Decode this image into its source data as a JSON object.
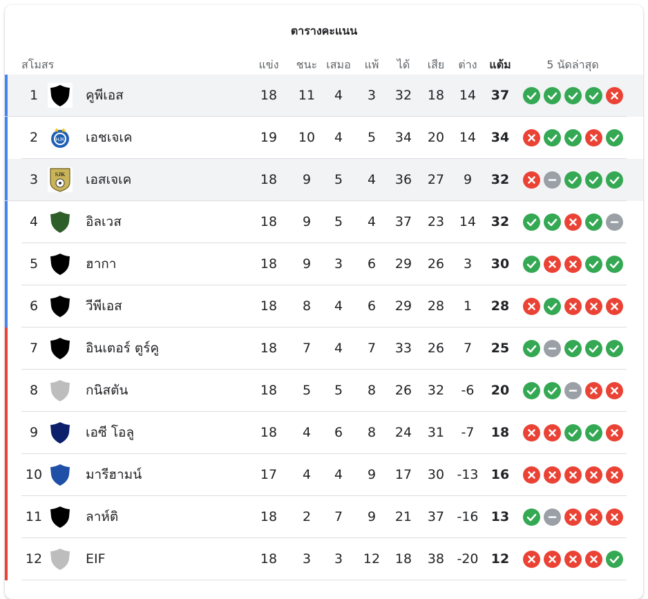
{
  "table": {
    "title": "ตารางคะแนน",
    "headers": {
      "club": "สโมสร",
      "played": "แข่ง",
      "won": "ชนะ",
      "drawn": "เสมอ",
      "lost": "แพ้",
      "gf": "ได้",
      "ga": "เสีย",
      "gd": "ต่าง",
      "points": "แต้ม",
      "last5": "5 นัดล่าสุด"
    },
    "colors": {
      "promotion_bar": "#4285f4",
      "relegation_bar": "#ea4335",
      "win": "#34a853",
      "loss": "#ea4335",
      "draw": "#9aa0a6"
    },
    "rows": [
      {
        "pos": "1",
        "club": "คูพีเอส",
        "crest": "shield-black",
        "played": "18",
        "won": "11",
        "drawn": "4",
        "lost": "3",
        "gf": "32",
        "ga": "18",
        "gd": "14",
        "pts": "37",
        "form": [
          "W",
          "W",
          "W",
          "W",
          "L"
        ],
        "zone": "blue",
        "highlight": true
      },
      {
        "pos": "2",
        "club": "เอชเจเค",
        "crest": "hjk-blue-badge",
        "played": "19",
        "won": "10",
        "drawn": "4",
        "lost": "5",
        "gf": "34",
        "ga": "20",
        "gd": "14",
        "pts": "34",
        "form": [
          "L",
          "W",
          "W",
          "L",
          "W"
        ],
        "zone": "blue",
        "highlight": false
      },
      {
        "pos": "3",
        "club": "เอสเจเค",
        "crest": "sjk-gold-badge",
        "played": "18",
        "won": "9",
        "drawn": "5",
        "lost": "4",
        "gf": "36",
        "ga": "27",
        "gd": "9",
        "pts": "32",
        "form": [
          "L",
          "D",
          "W",
          "W",
          "W"
        ],
        "zone": "blue",
        "highlight": true
      },
      {
        "pos": "4",
        "club": "อิลเวส",
        "crest": "shield-green",
        "played": "18",
        "won": "9",
        "drawn": "5",
        "lost": "4",
        "gf": "37",
        "ga": "23",
        "gd": "14",
        "pts": "32",
        "form": [
          "W",
          "W",
          "L",
          "W",
          "D"
        ],
        "zone": "blue",
        "highlight": false
      },
      {
        "pos": "5",
        "club": "ฮากา",
        "crest": "shield-black",
        "played": "18",
        "won": "9",
        "drawn": "3",
        "lost": "6",
        "gf": "29",
        "ga": "26",
        "gd": "3",
        "pts": "30",
        "form": [
          "W",
          "L",
          "L",
          "W",
          "W"
        ],
        "zone": "blue",
        "highlight": false
      },
      {
        "pos": "6",
        "club": "วีพีเอส",
        "crest": "shield-black",
        "played": "18",
        "won": "8",
        "drawn": "4",
        "lost": "6",
        "gf": "29",
        "ga": "28",
        "gd": "1",
        "pts": "28",
        "form": [
          "L",
          "W",
          "L",
          "L",
          "L"
        ],
        "zone": "blue",
        "highlight": false
      },
      {
        "pos": "7",
        "club": "อินเตอร์ ตูร์คู",
        "crest": "shield-black",
        "played": "18",
        "won": "7",
        "drawn": "4",
        "lost": "7",
        "gf": "33",
        "ga": "26",
        "gd": "7",
        "pts": "25",
        "form": [
          "W",
          "D",
          "W",
          "W",
          "W"
        ],
        "zone": "red",
        "highlight": false
      },
      {
        "pos": "8",
        "club": "กนิสตัน",
        "crest": "shield-grey",
        "played": "18",
        "won": "5",
        "drawn": "5",
        "lost": "8",
        "gf": "26",
        "ga": "32",
        "gd": "-6",
        "pts": "20",
        "form": [
          "W",
          "W",
          "D",
          "L",
          "L"
        ],
        "zone": "red",
        "highlight": false
      },
      {
        "pos": "9",
        "club": "เอซี โอลู",
        "crest": "shield-navy",
        "played": "18",
        "won": "4",
        "drawn": "6",
        "lost": "8",
        "gf": "24",
        "ga": "31",
        "gd": "-7",
        "pts": "18",
        "form": [
          "L",
          "L",
          "W",
          "W",
          "L"
        ],
        "zone": "red",
        "highlight": false
      },
      {
        "pos": "10",
        "club": "มารีฮามน์",
        "crest": "shield-blue",
        "played": "17",
        "won": "4",
        "drawn": "4",
        "lost": "9",
        "gf": "17",
        "ga": "30",
        "gd": "-13",
        "pts": "16",
        "form": [
          "L",
          "L",
          "L",
          "L",
          "L"
        ],
        "zone": "red",
        "highlight": false
      },
      {
        "pos": "11",
        "club": "ลาห์ติ",
        "crest": "shield-black",
        "played": "18",
        "won": "2",
        "drawn": "7",
        "lost": "9",
        "gf": "21",
        "ga": "37",
        "gd": "-16",
        "pts": "13",
        "form": [
          "W",
          "D",
          "L",
          "L",
          "L"
        ],
        "zone": "red",
        "highlight": false
      },
      {
        "pos": "12",
        "club": "EIF",
        "crest": "shield-grey",
        "played": "18",
        "won": "3",
        "drawn": "3",
        "lost": "12",
        "gf": "18",
        "ga": "38",
        "gd": "-20",
        "pts": "12",
        "form": [
          "L",
          "L",
          "L",
          "L",
          "W"
        ],
        "zone": "red",
        "highlight": false
      }
    ]
  }
}
